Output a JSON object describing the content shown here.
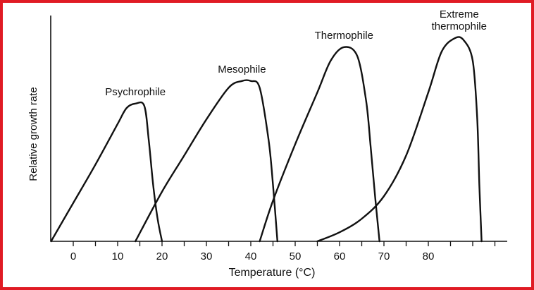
{
  "chart_data": {
    "type": "line",
    "xlabel": "Temperature (°C)",
    "ylabel": "Relative growth rate",
    "title": "",
    "x_ticks": [
      0,
      10,
      20,
      30,
      40,
      50,
      60,
      70,
      80
    ],
    "xlim": [
      -5,
      95
    ],
    "ylim": [
      0,
      1
    ],
    "grid": false,
    "series": [
      {
        "name": "Psychrophile",
        "label_lines": [
          "Psychrophile"
        ],
        "points": [
          [
            -5,
            0
          ],
          [
            0,
            0.17
          ],
          [
            5,
            0.34
          ],
          [
            10,
            0.52
          ],
          [
            12,
            0.59
          ],
          [
            14,
            0.61
          ],
          [
            16,
            0.6
          ],
          [
            17,
            0.45
          ],
          [
            18,
            0.25
          ],
          [
            19,
            0.1
          ],
          [
            20,
            0
          ]
        ]
      },
      {
        "name": "Mesophile",
        "label_lines": [
          "Mesophile"
        ],
        "points": [
          [
            14,
            0
          ],
          [
            20,
            0.22
          ],
          [
            25,
            0.38
          ],
          [
            30,
            0.54
          ],
          [
            35,
            0.68
          ],
          [
            38,
            0.71
          ],
          [
            40,
            0.71
          ],
          [
            42,
            0.68
          ],
          [
            44,
            0.45
          ],
          [
            45,
            0.25
          ],
          [
            46,
            0
          ]
        ]
      },
      {
        "name": "Thermophile",
        "label_lines": [
          "Thermophile"
        ],
        "points": [
          [
            42,
            0
          ],
          [
            45,
            0.18
          ],
          [
            50,
            0.43
          ],
          [
            55,
            0.66
          ],
          [
            58,
            0.8
          ],
          [
            61,
            0.86
          ],
          [
            64,
            0.82
          ],
          [
            66,
            0.62
          ],
          [
            67,
            0.42
          ],
          [
            68,
            0.2
          ],
          [
            69,
            0
          ]
        ]
      },
      {
        "name": "Extreme thermophile",
        "label_lines": [
          "Extreme",
          "thermophile"
        ],
        "points": [
          [
            55,
            0
          ],
          [
            60,
            0.04
          ],
          [
            65,
            0.1
          ],
          [
            70,
            0.2
          ],
          [
            75,
            0.38
          ],
          [
            80,
            0.66
          ],
          [
            83,
            0.84
          ],
          [
            86,
            0.9
          ],
          [
            88,
            0.89
          ],
          [
            90,
            0.8
          ],
          [
            91,
            0.55
          ],
          [
            91.5,
            0.25
          ],
          [
            92,
            0
          ]
        ]
      }
    ]
  }
}
